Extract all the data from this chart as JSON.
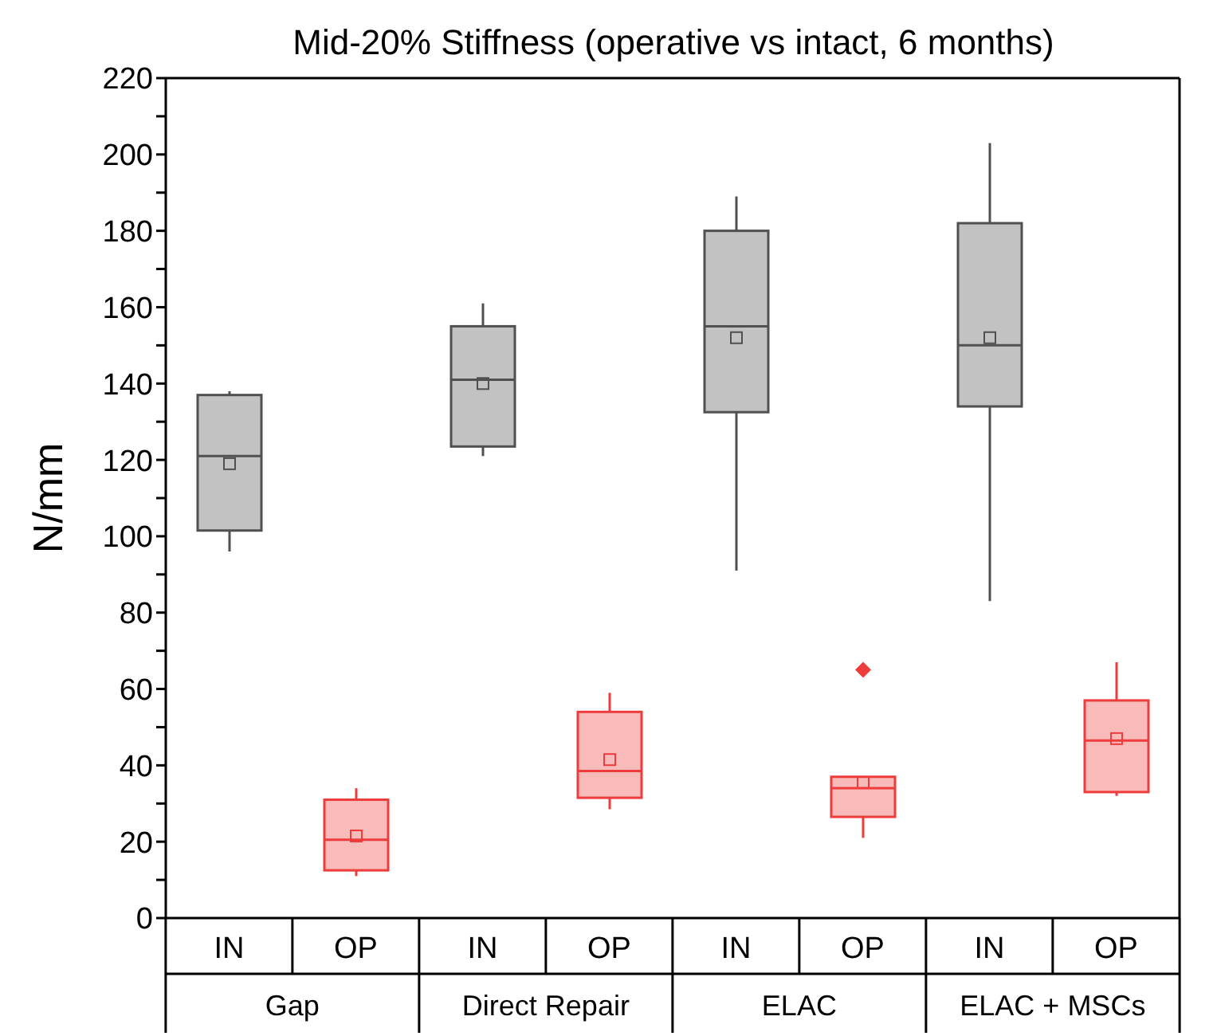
{
  "chart_data": {
    "type": "box",
    "title": "Mid-20% Stiffness (operative vs intact, 6 months)",
    "ylabel": "N/mm",
    "categories": [
      "Gap",
      "Direct Repair",
      "ELAC",
      "ELAC + MSCs"
    ],
    "series": [
      {
        "name": "IN",
        "color": "#505050",
        "boxes": [
          {
            "low": 96,
            "q1": 101.5,
            "median": 121,
            "q3": 137,
            "high": 138,
            "mean": 119
          },
          {
            "low": 121,
            "q1": 123.5,
            "median": 141,
            "q3": 155,
            "high": 161,
            "mean": 140
          },
          {
            "low": 91,
            "q1": 132.5,
            "median": 155,
            "q3": 180,
            "high": 189,
            "mean": 152
          },
          {
            "low": 83,
            "q1": 134,
            "median": 150,
            "q3": 182,
            "high": 203,
            "mean": 152
          }
        ]
      },
      {
        "name": "OP",
        "color": "#ee3b3b",
        "boxes": [
          {
            "low": 11,
            "q1": 12.5,
            "median": 20.5,
            "q3": 31,
            "high": 34,
            "mean": 21.5
          },
          {
            "low": 28.5,
            "q1": 31.5,
            "median": 38.5,
            "q3": 54,
            "high": 59,
            "mean": 41.5
          },
          {
            "low": 21,
            "q1": 26.5,
            "median": 34,
            "q3": 37,
            "high": 37,
            "mean": 35.5,
            "outliers": [
              65
            ]
          },
          {
            "low": 32,
            "q1": 33,
            "median": 46.5,
            "q3": 57,
            "high": 67,
            "mean": 47
          }
        ]
      }
    ],
    "ylim": [
      0,
      220
    ],
    "yticks": [
      0,
      {
        "value": 10,
        "label": null
      },
      20,
      {
        "value": 30,
        "label": null
      },
      40,
      {
        "value": 50,
        "label": null
      },
      60,
      {
        "value": 70,
        "label": null
      },
      80,
      {
        "value": 90,
        "label": null
      },
      100,
      {
        "value": 110,
        "label": null
      },
      120,
      {
        "value": 130,
        "label": null
      },
      140,
      {
        "value": 150,
        "label": null
      },
      160,
      {
        "value": 170,
        "label": null
      },
      180,
      {
        "value": 190,
        "label": null
      },
      200,
      {
        "value": 210,
        "label": null
      },
      220
    ],
    "grid": false
  }
}
